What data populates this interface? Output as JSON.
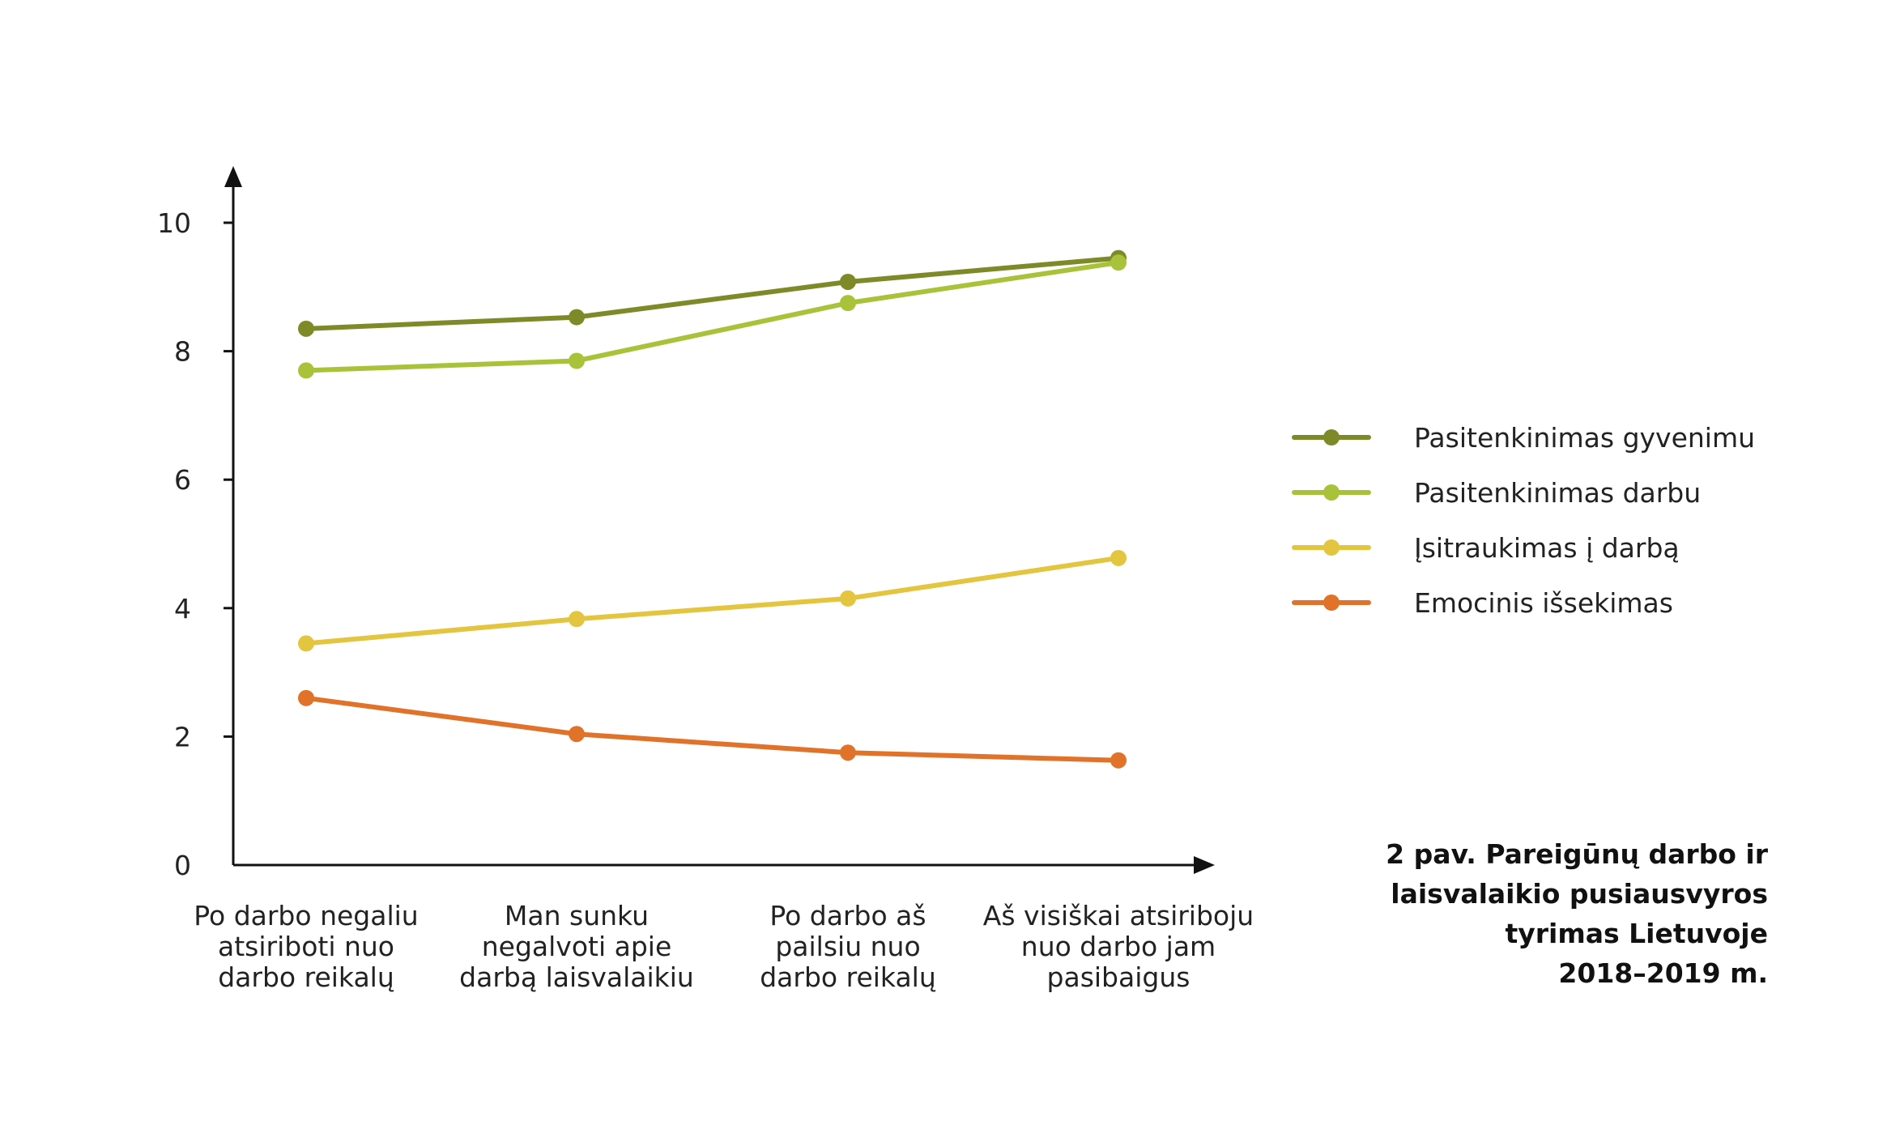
{
  "caption": {
    "lines": [
      "2 pav. Pareigūnų darbo ir",
      "laisvalaikio pusiausvyros",
      "tyrimas Lietuvoje",
      "2018–2019 m."
    ]
  },
  "chart_data": {
    "type": "line",
    "title": "",
    "xlabel": "",
    "ylabel": "",
    "ylim": [
      0,
      10
    ],
    "y_ticks": [
      "0",
      "2",
      "4",
      "6",
      "8",
      "10"
    ],
    "grid": false,
    "legend_position": "right",
    "categories": [
      [
        "Po darbo negaliu",
        "atsiriboti nuo",
        "darbo reikalų"
      ],
      [
        "Man sunku",
        "negalvoti apie",
        "darbą laisvalaikiu"
      ],
      [
        "Po darbo aš",
        "pailsiu nuo",
        "darbo reikalų"
      ],
      [
        "Aš visiškai atsiriboju",
        "nuo darbo jam",
        "pasibaigus"
      ]
    ],
    "series": [
      {
        "name": "Pasitenkinimas gyvenimu",
        "color": "#7d8a27",
        "values": [
          8.35,
          8.53,
          9.08,
          9.45
        ]
      },
      {
        "name": "Pasitenkinimas darbu",
        "color": "#a8c33a",
        "values": [
          7.7,
          7.85,
          8.75,
          9.38
        ]
      },
      {
        "name": "Įsitraukimas į darbą",
        "color": "#e3c53f",
        "values": [
          3.45,
          3.83,
          4.15,
          4.78
        ]
      },
      {
        "name": "Emocinis išsekimas",
        "color": "#e0722a",
        "values": [
          2.6,
          2.04,
          1.75,
          1.63
        ]
      }
    ]
  }
}
